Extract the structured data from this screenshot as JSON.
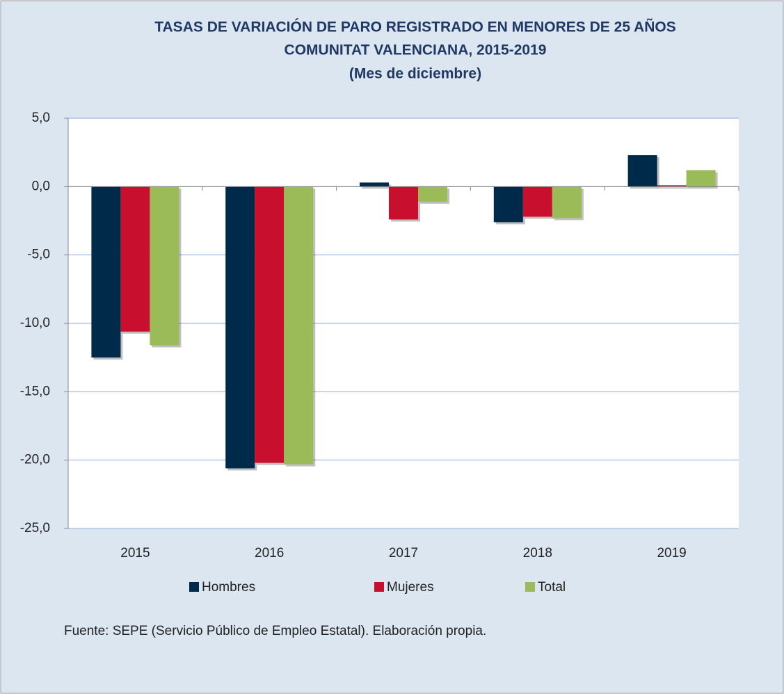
{
  "chart_data": {
    "type": "bar",
    "title": [
      "TASAS DE VARIACIÓN DE PARO REGISTRADO EN MENORES DE 25 AÑOS",
      "COMUNITAT  VALENCIANA,  2015-2019",
      "(Mes  de diciembre)"
    ],
    "categories": [
      "2015",
      "2016",
      "2017",
      "2018",
      "2019"
    ],
    "series": [
      {
        "name": "Hombres",
        "color": "#002a4a",
        "values": [
          -12.5,
          -20.6,
          0.3,
          -2.6,
          2.3
        ]
      },
      {
        "name": "Mujeres",
        "color": "#c8102e",
        "values": [
          -10.6,
          -20.2,
          -2.4,
          -2.2,
          0.1
        ]
      },
      {
        "name": "Total",
        "color": "#9bbb59",
        "values": [
          -11.6,
          -20.3,
          -1.1,
          -2.3,
          1.2
        ]
      }
    ],
    "ylim": [
      -25,
      5
    ],
    "yticks": [
      {
        "value": -25,
        "label": "-25,0"
      },
      {
        "value": -20,
        "label": "-20,0"
      },
      {
        "value": -15,
        "label": "-15,0"
      },
      {
        "value": -10,
        "label": "-10,0"
      },
      {
        "value": -5,
        "label": "-5,0"
      },
      {
        "value": 0,
        "label": "0,0"
      },
      {
        "value": 5,
        "label": "5,0"
      }
    ],
    "grid": true,
    "source": "Fuente: SEPE (Servicio Público de Empleo Estatal). Elaboración propia."
  }
}
